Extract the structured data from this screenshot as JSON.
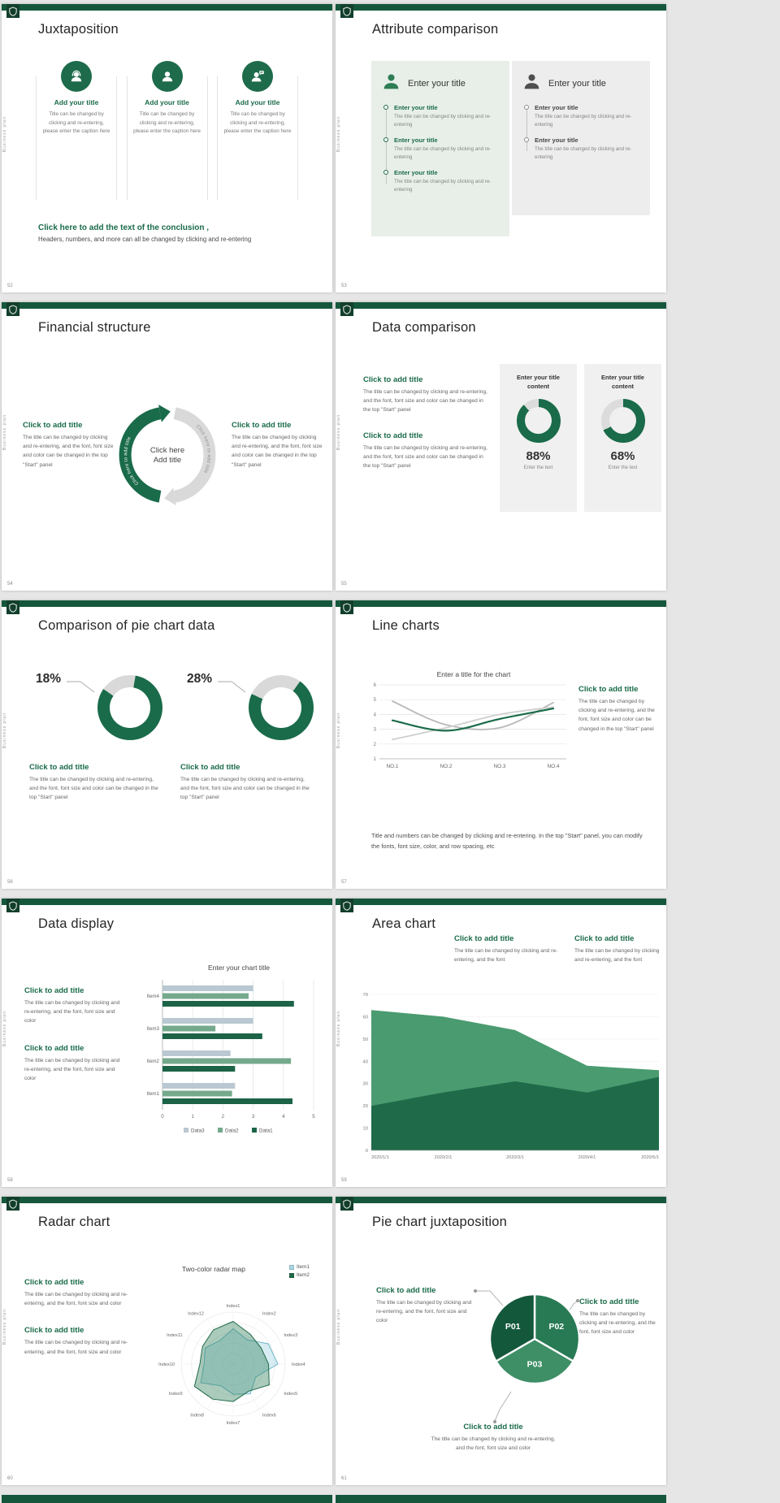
{
  "theme": {
    "green": "#1a6b4a",
    "green_dark": "#15573c",
    "green_mid": "#2e7d58",
    "panel_green": "#e8efe9",
    "panel_gray": "#ededed"
  },
  "common": {
    "brand_vertical": "Business plan"
  },
  "slides": [
    {
      "number": "52",
      "title": "Juxtaposition",
      "columns": [
        {
          "icon": "person-headset-icon",
          "heading": "Add your title",
          "caption": "Title can be changed by clicking and re-entering, please enter the caption here"
        },
        {
          "icon": "person-icon",
          "heading": "Add your title",
          "caption": "Title can be changed by clicking and re-entering, please enter the caption here"
        },
        {
          "icon": "person-chat-icon",
          "heading": "Add your title",
          "caption": "Title can be changed by clicking and re-entering, please enter the caption here"
        }
      ],
      "conclusion_heading": "Click here to add the text of the conclusion ,",
      "conclusion_body": "Headers, numbers, and more can all be changed by clicking and re-entering"
    },
    {
      "number": "53",
      "title": "Attribute comparison",
      "panels": [
        {
          "heading": "Enter your title",
          "items": [
            {
              "title": "Enter your title",
              "caption": "The title can be changed by clicking and re-entering"
            },
            {
              "title": "Enter your title",
              "caption": "The title can be changed by clicking and re-entering"
            },
            {
              "title": "Enter your title",
              "caption": "The title can be changed by clicking and re-entering"
            }
          ]
        },
        {
          "heading": "Enter your title",
          "items": [
            {
              "title": "Enter your title",
              "caption": "The title can be changed by clicking and re-entering"
            },
            {
              "title": "Enter your title",
              "caption": "The title can be changed by clicking and re-entering"
            }
          ]
        }
      ]
    },
    {
      "number": "54",
      "title": "Financial structure",
      "left": {
        "heading": "Click to add title",
        "body": "The title can be changed by clicking and re-entering, and the font, font size and color can be changed in the top \"Start\" panel"
      },
      "right": {
        "heading": "Click to add title",
        "body": "The title can be changed by clicking and re-entering, and the font, font size and color can be changed in the top \"Start\" panel"
      },
      "center": {
        "line1": "Click here",
        "line2": "Add title",
        "arc_label_green": "Click here to add title",
        "arc_label_gray": "Click here to add title"
      }
    },
    {
      "number": "55",
      "title": "Data comparison",
      "blocks": [
        {
          "heading": "Click to add title",
          "body": "The title can be changed by clicking and re-entering, and the font, font size and color can be changed in the top \"Start\" panel"
        },
        {
          "heading": "Click to add title",
          "body": "The title can be changed by clicking and re-entering, and the font, font size and color can be changed in the top \"Start\" panel"
        }
      ],
      "cards": [
        {
          "heading": "Enter your title content",
          "percent": 88,
          "percent_label": "88%",
          "caption": "Enter the text"
        },
        {
          "heading": "Enter your title content",
          "percent": 68,
          "percent_label": "68%",
          "caption": "Enter the text"
        }
      ]
    },
    {
      "number": "56",
      "title": "Comparison of pie chart data",
      "items": [
        {
          "percent": 18,
          "percent_label": "18%",
          "heading": "Click to add title",
          "body": "The title can be changed by clicking and re-entering, and the font, font size and color can be changed in the top \"Start\" panel"
        },
        {
          "percent": 28,
          "percent_label": "28%",
          "heading": "Click to add title",
          "body": "The title can be changed by clicking and re-entering, and the font, font size and color can be changed in the top \"Start\" panel"
        }
      ]
    },
    {
      "number": "57",
      "title": "Line charts",
      "chart": {
        "type": "line",
        "title": "Enter a title for the chart",
        "x_labels": [
          "NO.1",
          "NO.2",
          "NO.3",
          "NO.4"
        ],
        "y_ticks": [
          1,
          2,
          3,
          4,
          5,
          6
        ],
        "y_range": [
          1,
          6
        ],
        "series": [
          {
            "name": "gray-line-1",
            "color": "#b9b9b9",
            "values": [
              4.9,
              3.3,
              3.1,
              4.8
            ]
          },
          {
            "name": "gray-line-2",
            "color": "#cfcfcf",
            "values": [
              2.3,
              3.1,
              4.0,
              4.5
            ]
          },
          {
            "name": "green-line",
            "color": "#1a6b4a",
            "values": [
              3.6,
              2.9,
              3.7,
              4.4
            ]
          }
        ]
      },
      "side": {
        "heading": "Click to add title",
        "body": "The title can be changed by clicking and re-entering, and the font, font size and color can be changed in the top \"Start\" panel"
      },
      "footer": "Title and numbers can be changed by clicking and re-entering. In the top \"Start\" panel, you can modify the fonts, font size, color, and row spacing, etc"
    },
    {
      "number": "58",
      "title": "Data display",
      "blocks": [
        {
          "heading": "Click to add title",
          "body": "The title can be changed by clicking and re-entering, and the font, font size and color"
        },
        {
          "heading": "Click to add title",
          "body": "The title can be changed by clicking and re-entering, and the font, font size and color"
        }
      ],
      "chart": {
        "type": "bar-horizontal",
        "title": "Enter your chart title",
        "categories": [
          "Item1",
          "Item2",
          "Item3",
          "Item4"
        ],
        "x_ticks": [
          0,
          1,
          2,
          3,
          4,
          5
        ],
        "legend": [
          {
            "label": "Data3",
            "color": "#b9c8d2"
          },
          {
            "label": "Data2",
            "color": "#74a98c"
          },
          {
            "label": "Data1",
            "color": "#1c6347"
          }
        ],
        "series": [
          {
            "name": "Data3",
            "color": "#b9c8d2",
            "values": [
              2.4,
              2.25,
              3.0,
              3.0
            ]
          },
          {
            "name": "Data2",
            "color": "#74a98c",
            "values": [
              2.3,
              4.25,
              1.75,
              2.85
            ]
          },
          {
            "name": "Data1",
            "color": "#1c6347",
            "values": [
              4.3,
              2.4,
              3.3,
              4.35
            ]
          }
        ]
      }
    },
    {
      "number": "59",
      "title": "Area chart",
      "blocks": [
        {
          "heading": "Click to add title",
          "body": "The title can be changed by clicking and re-entering, and the font"
        },
        {
          "heading": "Click to add title",
          "body": "The title can be changed by clicking and re-entering, and the font"
        }
      ],
      "chart": {
        "type": "area",
        "x_labels": [
          "2020/1/1",
          "2020/2/1",
          "2020/3/1",
          "2020/4/1",
          "2020/5/1"
        ],
        "y_ticks": [
          0,
          10,
          20,
          30,
          40,
          50,
          60,
          70
        ],
        "y_range": [
          0,
          70
        ],
        "series": [
          {
            "name": "back-area",
            "color": "#4a9b70",
            "values": [
              63,
              60,
              54,
              38,
              36
            ]
          },
          {
            "name": "front-area",
            "color": "#1f6b49",
            "values": [
              20,
              26,
              31,
              26,
              33
            ]
          }
        ]
      }
    },
    {
      "number": "60",
      "title": "Radar chart",
      "blocks": [
        {
          "heading": "Click to add title",
          "body": "The title can be changed by clicking and re-entering, and the font, font size and color"
        },
        {
          "heading": "Click to add title",
          "body": "The title can be changed by clicking and re-entering, and the font, font size and color"
        }
      ],
      "chart": {
        "type": "radar",
        "title": "Two-color radar map",
        "axes": [
          "Index1",
          "Index2",
          "Index3",
          "Index4",
          "Index5",
          "Index6",
          "Index7",
          "Index8",
          "Index9",
          "Index10",
          "Index11",
          "Index12"
        ],
        "max": 5,
        "legend": [
          {
            "label": "Item1",
            "color": "#a8d8e4"
          },
          {
            "label": "Item2",
            "color": "#1f6b49"
          }
        ],
        "series": [
          {
            "name": "Item1",
            "stroke": "#6fb9cc",
            "fill": "rgba(168,216,228,0.45)",
            "values": [
              3.4,
              2.7,
              3.9,
              4.3,
              2.5,
              3.3,
              2.9,
              2.4,
              3.6,
              2.8,
              3.1,
              2.6
            ]
          },
          {
            "name": "Item2",
            "stroke": "#1f6b49",
            "fill": "rgba(46,125,88,0.40)",
            "values": [
              4.1,
              3.3,
              3.1,
              3.4,
              4.0,
              3.0,
              3.6,
              3.9,
              4.3,
              3.2,
              3.4,
              3.8
            ]
          }
        ]
      }
    },
    {
      "number": "61",
      "title": "Pie chart juxtaposition",
      "blocks": [
        {
          "heading": "Click to add title",
          "body": "The title can be changed by clicking and re-entering, and the font, font size and color"
        },
        {
          "heading": "Click to add title",
          "body": "The title can be changed by clicking and re-entering, and the font, font size and color"
        },
        {
          "heading": "Click to add title",
          "body": "The title can be changed by clicking and re-entering, and the font, font size and color"
        }
      ],
      "pie": {
        "type": "pie",
        "segments": [
          {
            "label": "P02",
            "color": "#287a54",
            "start": 0,
            "end": 120
          },
          {
            "label": "P03",
            "color": "#3e8e66",
            "start": 120,
            "end": 240
          },
          {
            "label": "P01",
            "color": "#14583c",
            "start": 240,
            "end": 360
          }
        ]
      }
    }
  ]
}
